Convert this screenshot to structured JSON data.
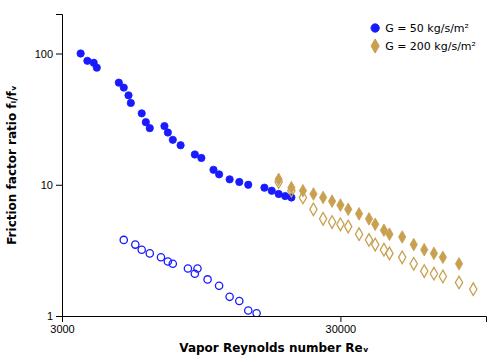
{
  "chart_data": {
    "type": "scatter",
    "xlabel": "Vapor Reynolds number Reᵥ",
    "ylabel": "Friction factor ratio fᵢ/fᵥ",
    "log": true,
    "grid": false,
    "legend": "upper right",
    "xlim": [
      3000,
      100000
    ],
    "ylim": [
      1,
      200
    ],
    "xticks": [
      3000,
      30000
    ],
    "yticks": [
      1,
      10,
      100
    ],
    "series": [
      {
        "name": "G = 50 kg/s/m²",
        "color": "#1a1aff",
        "marker": "circle",
        "x": [
          3500,
          3700,
          3900,
          4000,
          4800,
          5000,
          5200,
          5300,
          5800,
          6000,
          6200,
          7000,
          7200,
          7500,
          8000,
          9000,
          9500,
          10500,
          11000,
          12000,
          13000,
          14000,
          16000,
          17000,
          18000,
          19000,
          20000
        ],
        "values": [
          100,
          88,
          85,
          78,
          60,
          55,
          48,
          42,
          35,
          30,
          27,
          28,
          25,
          22,
          20,
          17,
          16,
          13,
          12,
          11,
          10.5,
          10,
          9.5,
          9,
          8.5,
          8.2,
          8
        ]
      },
      {
        "color": "#1a1aff",
        "marker": "circle-open",
        "x": [
          5000,
          5500,
          5800,
          6200,
          6800,
          7200,
          7500,
          8500,
          9000,
          9200,
          10000,
          11000,
          12000,
          13000,
          14000,
          15000
        ],
        "values": [
          3.8,
          3.5,
          3.2,
          3.0,
          2.8,
          2.6,
          2.5,
          2.3,
          2.1,
          2.3,
          1.9,
          1.7,
          1.4,
          1.3,
          1.1,
          1.05
        ]
      },
      {
        "name": "G = 200 kg/s/m²",
        "color": "#c8a050",
        "marker": "diamond",
        "x": [
          18000,
          20000,
          22000,
          24000,
          26000,
          28000,
          30000,
          32000,
          35000,
          38000,
          40000,
          43000,
          45000,
          50000,
          55000,
          60000,
          65000,
          70000,
          80000
        ],
        "values": [
          11,
          9.5,
          9,
          8.5,
          8,
          7.5,
          7,
          6.5,
          6,
          5.5,
          5,
          4.5,
          4.2,
          4.0,
          3.5,
          3.2,
          3.0,
          2.8,
          2.5
        ]
      },
      {
        "color": "#c8a050",
        "marker": "diamond-open",
        "x": [
          18000,
          20000,
          22000,
          24000,
          26000,
          28000,
          30000,
          32000,
          35000,
          38000,
          40000,
          43000,
          45000,
          50000,
          55000,
          60000,
          65000,
          70000,
          80000,
          90000
        ],
        "values": [
          10.5,
          9.0,
          8.0,
          6.5,
          5.5,
          5.2,
          5.0,
          4.8,
          4.2,
          3.8,
          3.5,
          3.2,
          3.0,
          2.8,
          2.5,
          2.2,
          2.1,
          2.0,
          1.8,
          1.6
        ]
      }
    ]
  }
}
